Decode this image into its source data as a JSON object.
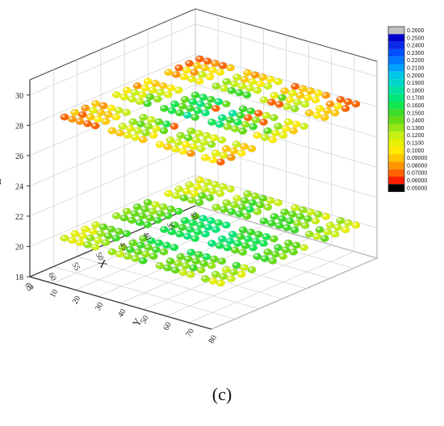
{
  "chart_data": {
    "type": "scatter3d",
    "title": "",
    "xlabel": "X",
    "ylabel": "Y",
    "zlabel": "Z",
    "xlim": [
      30,
      65
    ],
    "ylim": [
      0,
      80
    ],
    "zlim": [
      18,
      31
    ],
    "xticks": [
      "30",
      "35",
      "40",
      "45",
      "50",
      "55",
      "60",
      "65"
    ],
    "yticks": [
      "0",
      "10",
      "20",
      "30",
      "40",
      "50",
      "60",
      "70",
      "80"
    ],
    "zticks": [
      "18",
      "20",
      "22",
      "24",
      "26",
      "28",
      "30"
    ],
    "grid": true,
    "colorbar": {
      "values": [
        "0.2600",
        "0.2500",
        "0.2400",
        "0.2300",
        "0.2200",
        "0.2100",
        "0.2000",
        "0.1900",
        "0.1800",
        "0.1700",
        "0.1600",
        "0.1500",
        "0.1400",
        "0.1300",
        "0.1200",
        "0.1100",
        "0.1000",
        "0.09000",
        "0.08000",
        "0.07000",
        "0.06000",
        "0.05000"
      ],
      "colors": [
        "#c0c0c0",
        "#0000cc",
        "#0a28e6",
        "#0050ff",
        "#0078ff",
        "#00a0ff",
        "#00c8e6",
        "#00d7c8",
        "#00e1a0",
        "#00e678",
        "#14e650",
        "#3cdc28",
        "#64dc14",
        "#96e614",
        "#c8f014",
        "#e6f000",
        "#ffeb00",
        "#ffc800",
        "#ff9600",
        "#ff6400",
        "#ff1e00",
        "#000000"
      ],
      "position": "right"
    },
    "layers": [
      {
        "z": 28,
        "x_range": [
          31,
          63
        ],
        "y_range": [
          4,
          76
        ],
        "value_range": [
          0.07,
          0.18
        ]
      },
      {
        "z": 20,
        "x_range": [
          31,
          63
        ],
        "y_range": [
          4,
          76
        ],
        "value_range": [
          0.11,
          0.18
        ]
      }
    ]
  },
  "caption": "(c)"
}
